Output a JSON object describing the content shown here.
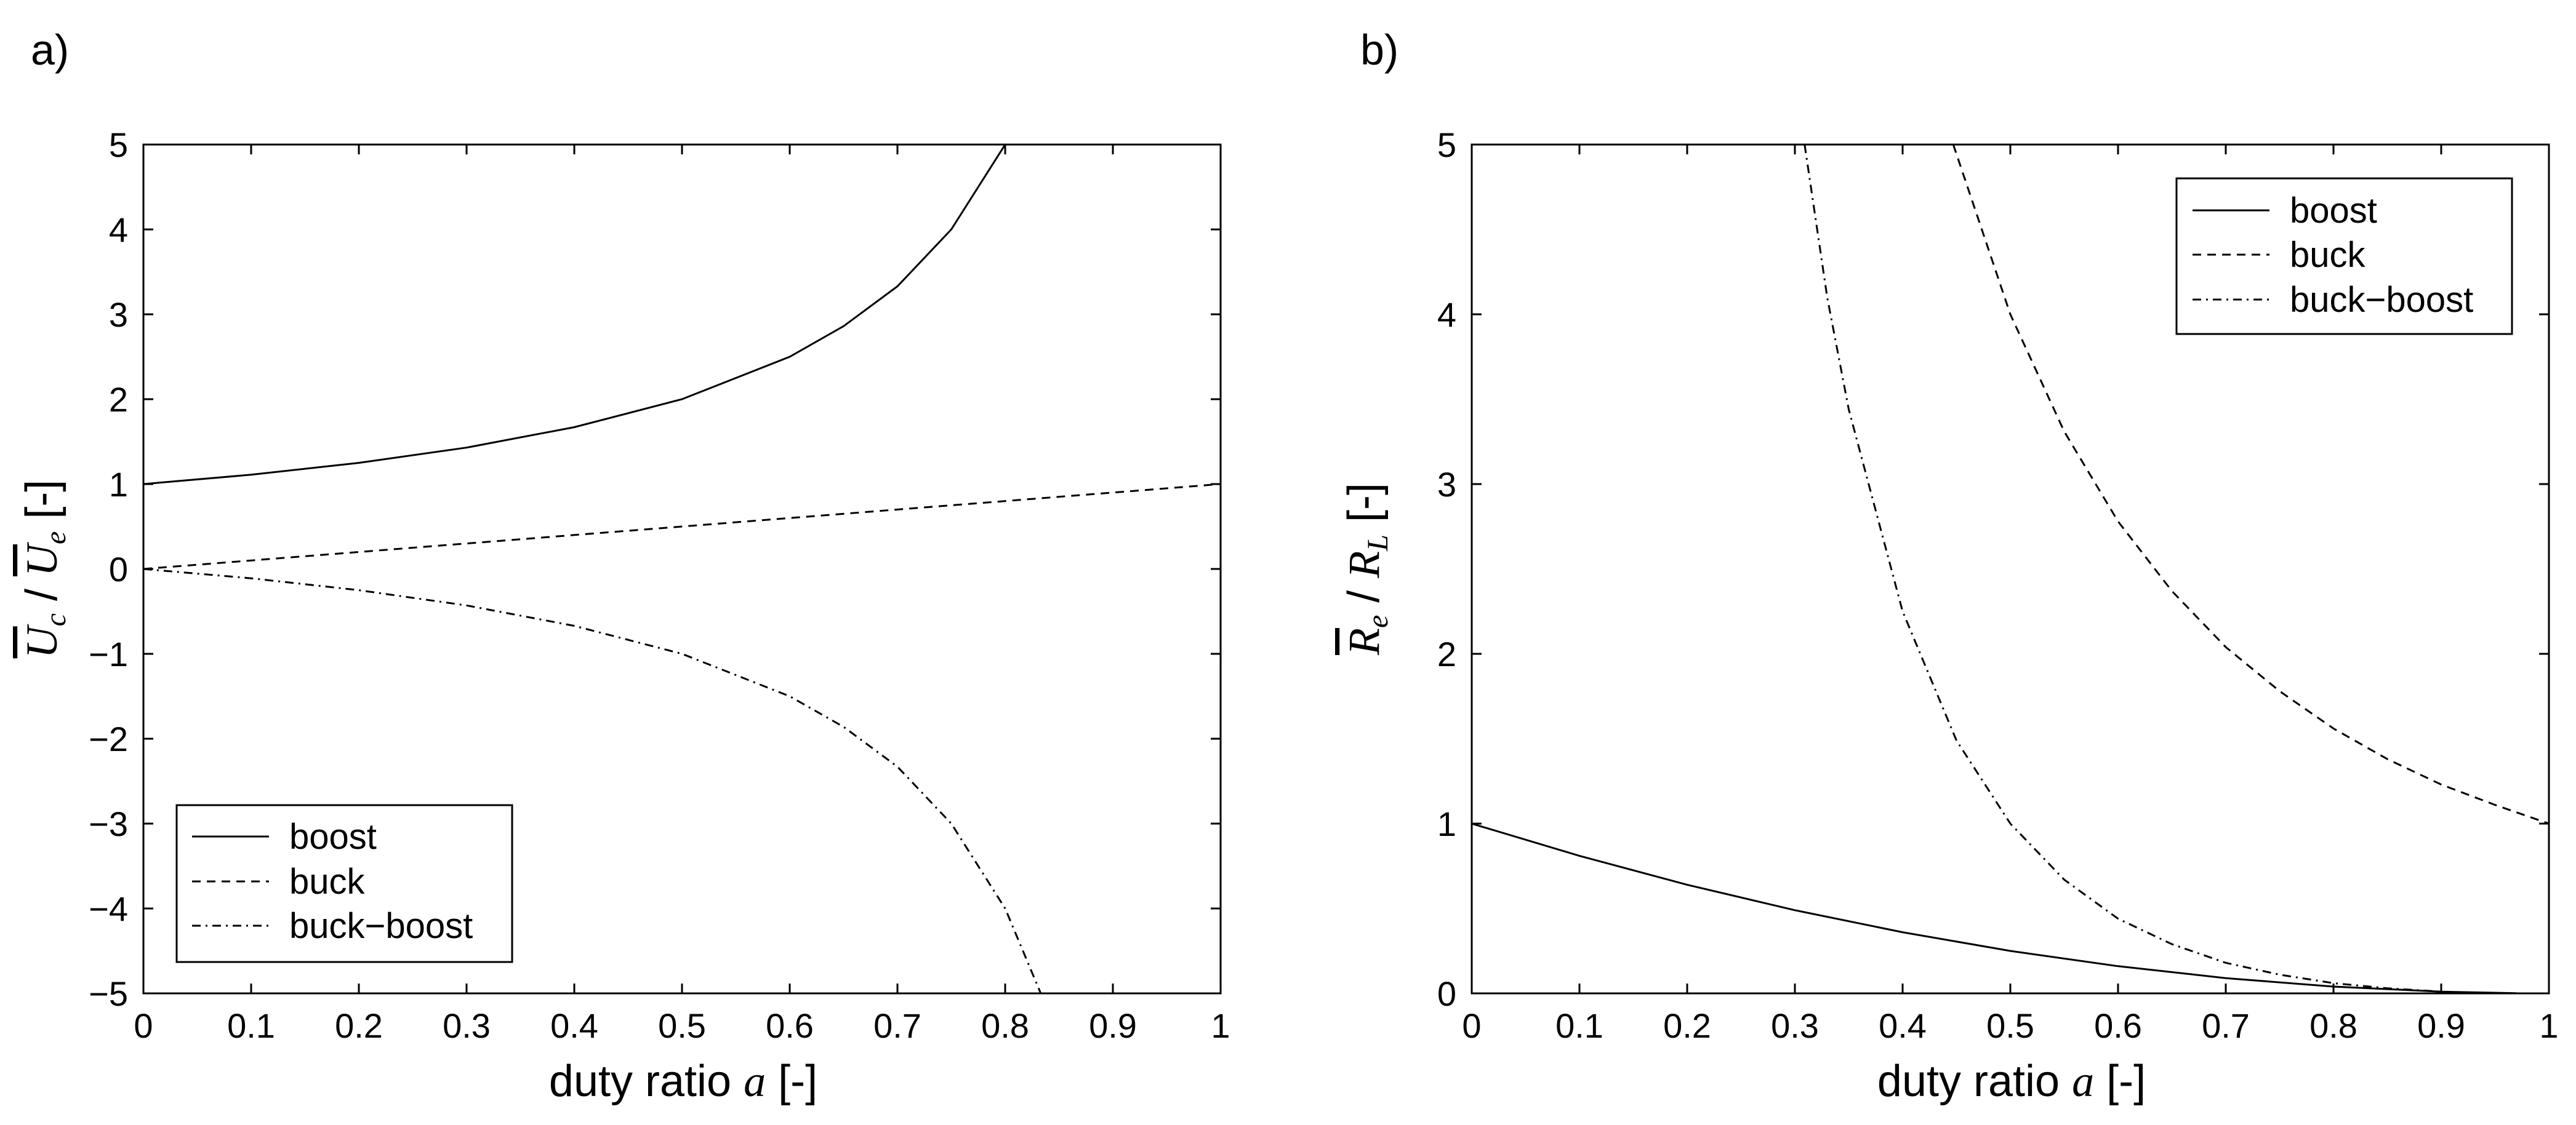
{
  "chart_data": [
    {
      "type": "line",
      "panel_label": "a)",
      "xlabel": "duty ratio a [-]",
      "xlabel_parts": [
        "duty ratio ",
        "a",
        " [-]"
      ],
      "ylabel": "Uc / Ue [-]",
      "ylabel_parts": {
        "sym1": "U",
        "sub1": "c",
        "sep": " / ",
        "sym2": "U",
        "sub2": "e",
        "unit": " [-]"
      },
      "xlim": [
        0,
        1
      ],
      "ylim": [
        -5,
        5
      ],
      "x_ticks": [
        0,
        0.1,
        0.2,
        0.3,
        0.4,
        0.5,
        0.6,
        0.7,
        0.8,
        0.9,
        1
      ],
      "x_tick_labels": [
        "0",
        "0.1",
        "0.2",
        "0.3",
        "0.4",
        "0.5",
        "0.6",
        "0.7",
        "0.8",
        "0.9",
        "1"
      ],
      "y_ticks": [
        -5,
        -4,
        -3,
        -2,
        -1,
        0,
        1,
        2,
        3,
        4,
        5
      ],
      "y_tick_labels": [
        "−5",
        "−4",
        "−3",
        "−2",
        "−1",
        "0",
        "1",
        "2",
        "3",
        "4",
        "5"
      ],
      "grid": false,
      "legend_position": "bottom-left",
      "series": [
        {
          "name": "boost",
          "style": "solid",
          "x": [
            0,
            0.1,
            0.2,
            0.3,
            0.4,
            0.5,
            0.6,
            0.65,
            0.7,
            0.75,
            0.8
          ],
          "y": [
            1,
            1.11,
            1.25,
            1.43,
            1.67,
            2,
            2.5,
            2.86,
            3.33,
            4,
            5
          ]
        },
        {
          "name": "buck",
          "style": "dashed",
          "x": [
            0,
            0.1,
            0.2,
            0.3,
            0.4,
            0.5,
            0.6,
            0.7,
            0.8,
            0.9,
            1
          ],
          "y": [
            0,
            0.1,
            0.2,
            0.3,
            0.4,
            0.5,
            0.6,
            0.7,
            0.8,
            0.9,
            1
          ]
        },
        {
          "name": "buck−boost",
          "style": "dashdot",
          "x": [
            0,
            0.1,
            0.2,
            0.3,
            0.4,
            0.5,
            0.6,
            0.65,
            0.7,
            0.75,
            0.8,
            0.833
          ],
          "y": [
            0,
            -0.11,
            -0.25,
            -0.43,
            -0.67,
            -1,
            -1.5,
            -1.86,
            -2.33,
            -3,
            -4,
            -5
          ]
        }
      ]
    },
    {
      "type": "line",
      "panel_label": "b)",
      "xlabel": "duty ratio a [-]",
      "xlabel_parts": [
        "duty ratio ",
        "a",
        " [-]"
      ],
      "ylabel": "Re / RL [-]",
      "ylabel_parts": {
        "sym1": "R",
        "sub1": "e",
        "sep": " / ",
        "sym2": "R",
        "sub2": "L",
        "unit": " [-]"
      },
      "xlim": [
        0,
        1
      ],
      "ylim": [
        0,
        5
      ],
      "x_ticks": [
        0,
        0.1,
        0.2,
        0.3,
        0.4,
        0.5,
        0.6,
        0.7,
        0.8,
        0.9,
        1
      ],
      "x_tick_labels": [
        "0",
        "0.1",
        "0.2",
        "0.3",
        "0.4",
        "0.5",
        "0.6",
        "0.7",
        "0.8",
        "0.9",
        "1"
      ],
      "y_ticks": [
        0,
        1,
        2,
        3,
        4,
        5
      ],
      "y_tick_labels": [
        "0",
        "1",
        "2",
        "3",
        "4",
        "5"
      ],
      "grid": false,
      "legend_position": "top-right",
      "series": [
        {
          "name": "boost",
          "style": "solid",
          "x": [
            0,
            0.1,
            0.2,
            0.3,
            0.4,
            0.5,
            0.6,
            0.7,
            0.8,
            0.9,
            0.97
          ],
          "y": [
            1,
            0.81,
            0.64,
            0.49,
            0.36,
            0.25,
            0.16,
            0.09,
            0.04,
            0.01,
            0.001
          ]
        },
        {
          "name": "buck",
          "style": "dashed",
          "x": [
            0.447,
            0.5,
            0.55,
            0.6,
            0.65,
            0.7,
            0.75,
            0.8,
            0.85,
            0.9,
            0.95,
            1
          ],
          "y": [
            5,
            4,
            3.31,
            2.78,
            2.37,
            2.04,
            1.78,
            1.56,
            1.38,
            1.23,
            1.11,
            1
          ]
        },
        {
          "name": "buck−boost",
          "style": "dashdot",
          "x": [
            0.309,
            0.33,
            0.35,
            0.4,
            0.45,
            0.5,
            0.55,
            0.6,
            0.65,
            0.7,
            0.75,
            0.8,
            0.85,
            0.9
          ],
          "y": [
            5,
            4.1,
            3.44,
            2.25,
            1.49,
            1,
            0.67,
            0.44,
            0.29,
            0.18,
            0.11,
            0.06,
            0.03,
            0.01
          ]
        }
      ]
    }
  ]
}
